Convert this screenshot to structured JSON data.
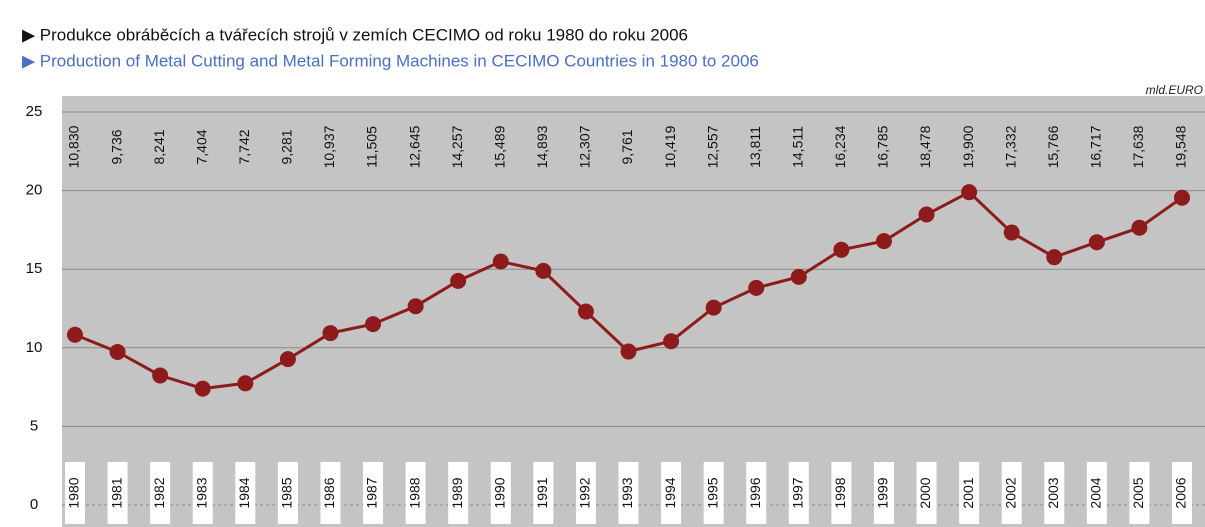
{
  "chart_data": {
    "type": "line",
    "title": "▶ Produkce obráběcích a tvářecích strojů v zemích CECIMO od roku 1980 do roku 2006",
    "subtitle": "▶ Production of Metal Cutting and Metal Forming Machines in CECIMO Countries in 1980 to 2006",
    "unit": "mld.EURO",
    "categories": [
      "1980",
      "1981",
      "1982",
      "1983",
      "1984",
      "1985",
      "1986",
      "1987",
      "1988",
      "1989",
      "1990",
      "1991",
      "1992",
      "1993",
      "1994",
      "1995",
      "1996",
      "1997",
      "1998",
      "1999",
      "2000",
      "2001",
      "2002",
      "2003",
      "2004",
      "2005",
      "2006"
    ],
    "series": [
      {
        "name": "Production",
        "color": "#8e1b1b",
        "values": [
          10.83,
          9.736,
          8.241,
          7.404,
          7.742,
          9.281,
          10.937,
          11.505,
          12.645,
          14.257,
          15.489,
          14.893,
          12.307,
          9.761,
          10.419,
          12.557,
          13.811,
          14.511,
          16.234,
          16.785,
          18.478,
          19.9,
          17.332,
          15.766,
          16.717,
          17.638,
          19.548
        ],
        "value_labels": [
          "10,830",
          "9,736",
          "8,241",
          "7,404",
          "7,742",
          "9,281",
          "10,937",
          "11,505",
          "12,645",
          "14,257",
          "15,489",
          "14,893",
          "12,307",
          "9,761",
          "10,419",
          "12,557",
          "13,811",
          "14,511",
          "16,234",
          "16,785",
          "18,478",
          "19,900",
          "17,332",
          "15,766",
          "16,717",
          "17,638",
          "19,548"
        ]
      }
    ],
    "ylim": [
      0,
      25
    ],
    "yticks": [
      0,
      5,
      10,
      15,
      20,
      25
    ],
    "grid": true
  }
}
